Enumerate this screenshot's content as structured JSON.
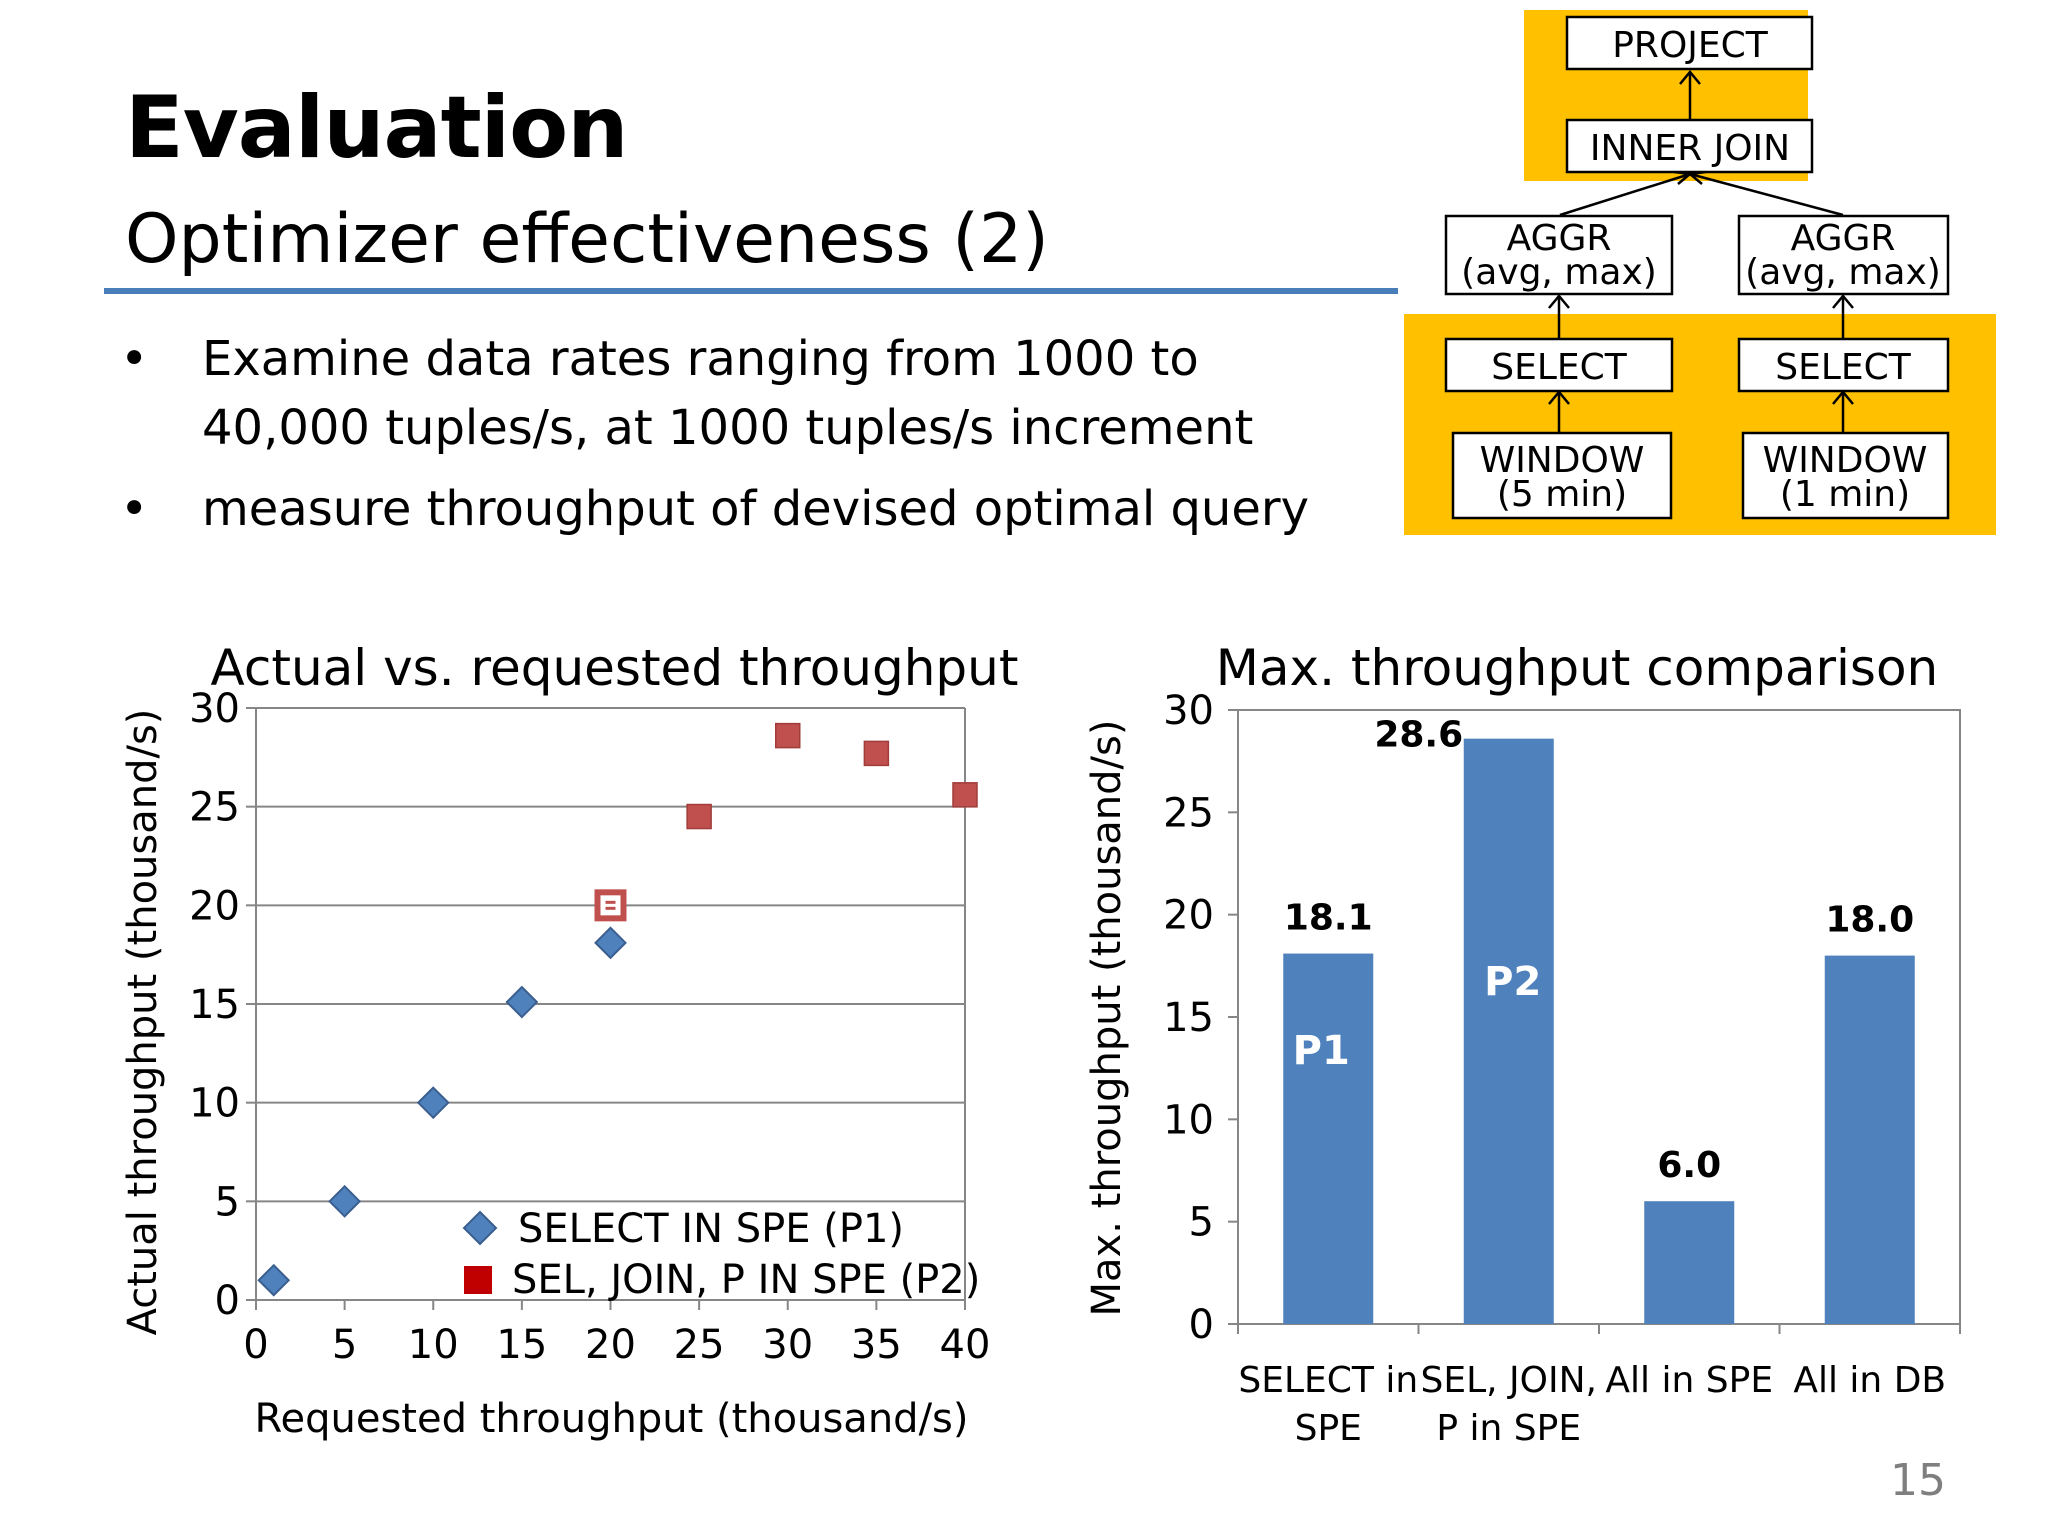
{
  "slide": {
    "title": "Evaluation",
    "subtitle": "Optimizer effectiveness (2)",
    "bullets": [
      "Examine data rates ranging from 1000 to 40,000 tuples/s, at 1000 tuples/s increment",
      "measure throughput of devised optimal query"
    ],
    "bullet_mark": "•",
    "page_number": "15"
  },
  "query_plan": {
    "project": "PROJECT",
    "inner_join": "INNER JOIN",
    "aggr_left": [
      "AGGR",
      "(avg, max)"
    ],
    "aggr_right": [
      "AGGR",
      "(avg, max)"
    ],
    "select_left": "SELECT",
    "select_right": "SELECT",
    "window_left": [
      "WINDOW",
      "(5 min)"
    ],
    "window_right": [
      "WINDOW",
      "(1 min)"
    ],
    "highlight_color": "#ffc000"
  },
  "chart_data": [
    {
      "type": "scatter",
      "title": "Actual vs. requested throughput",
      "xlabel": "Requested throughput (thousand/s)",
      "ylabel": "Actual throughput (thousand/s)",
      "xlim": [
        0,
        40
      ],
      "ylim": [
        0,
        30
      ],
      "xticks": [
        0,
        5,
        10,
        15,
        20,
        25,
        30,
        35,
        40
      ],
      "yticks": [
        0,
        5,
        10,
        15,
        20,
        25,
        30
      ],
      "grid": "horizontal",
      "legend": "bottom-right",
      "series": [
        {
          "name": "SELECT IN SPE (P1)",
          "marker": "diamond",
          "color": "#4f81bd",
          "points": [
            [
              1,
              1.0
            ],
            [
              5,
              5.0
            ],
            [
              10,
              10.0
            ],
            [
              15,
              15.1
            ],
            [
              20,
              18.1
            ]
          ]
        },
        {
          "name": "SEL, JOIN, P IN SPE (P2)",
          "marker": "square",
          "color": "#c0504d",
          "points": [
            [
              20,
              20.0
            ],
            [
              25,
              24.5
            ],
            [
              30,
              28.6
            ],
            [
              35,
              27.7
            ],
            [
              40,
              25.6
            ]
          ]
        }
      ]
    },
    {
      "type": "bar",
      "title": "Max. throughput comparison",
      "ylabel": "Max. throughput (thousand/s)",
      "xlabel": "",
      "ylim": [
        0,
        30
      ],
      "yticks": [
        0,
        5,
        10,
        15,
        20,
        25,
        30
      ],
      "categories": [
        [
          "SELECT in",
          "SPE"
        ],
        [
          "SEL, JOIN,",
          "P in SPE"
        ],
        [
          "All in SPE"
        ],
        [
          "All in DB"
        ]
      ],
      "values": [
        18.1,
        28.6,
        6.0,
        18.0
      ],
      "value_labels": [
        "18.1",
        "28.6",
        "6.0",
        "18.0"
      ],
      "inner_labels": [
        "P1",
        "P2",
        "",
        ""
      ],
      "color": "#4f81bd"
    }
  ]
}
